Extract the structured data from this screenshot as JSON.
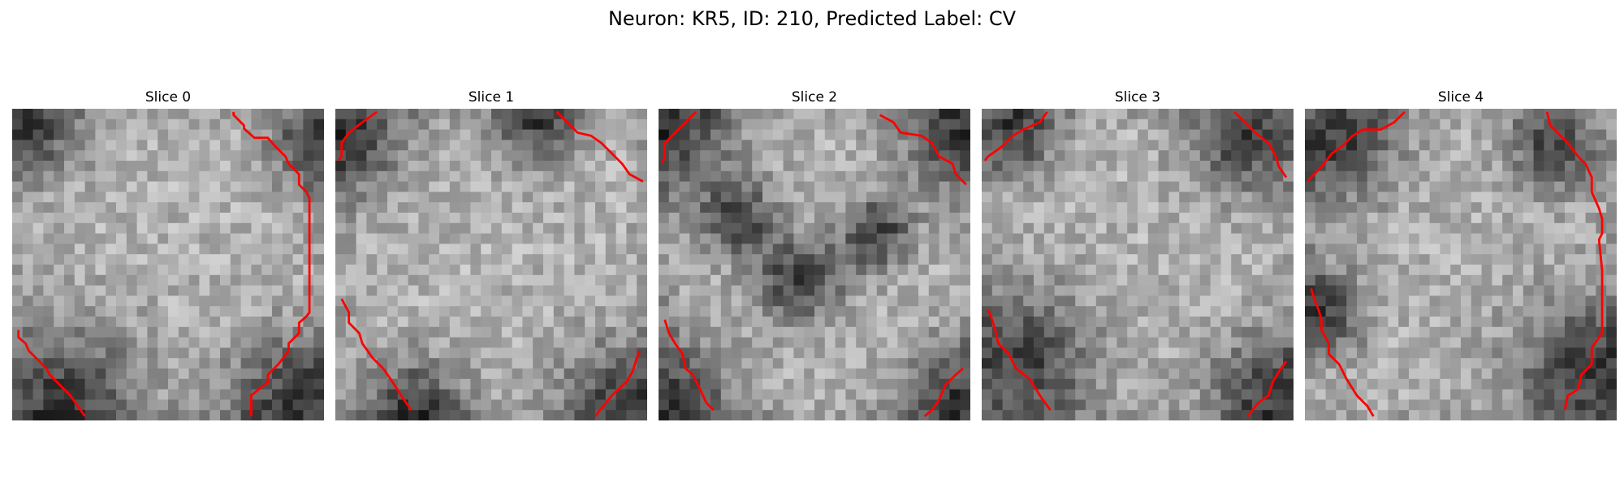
{
  "figure": {
    "title": "Neuron: KR5, ID: 210, Predicted Label: CV"
  },
  "slices": [
    {
      "label": "Slice 0",
      "index": 0
    },
    {
      "label": "Slice 1",
      "index": 1
    },
    {
      "label": "Slice 2",
      "index": 2
    },
    {
      "label": "Slice 3",
      "index": 3
    },
    {
      "label": "Slice 4",
      "index": 4
    }
  ],
  "colors": {
    "contour": "#ff0000"
  }
}
